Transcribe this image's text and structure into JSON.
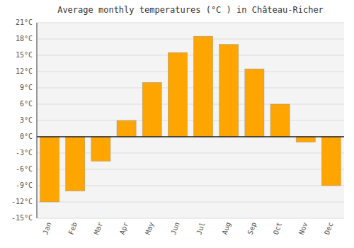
{
  "chart_data": {
    "type": "bar",
    "title": "Average monthly temperatures (°C ) in Château-Richer",
    "categories": [
      "Jan",
      "Feb",
      "Mar",
      "Apr",
      "May",
      "Jun",
      "Jul",
      "Aug",
      "Sep",
      "Oct",
      "Nov",
      "Dec"
    ],
    "values": [
      -12,
      -10,
      -4.5,
      3,
      10,
      15.5,
      18.5,
      17,
      12.5,
      6,
      -1,
      -9
    ],
    "color": "#FFA500",
    "ylim": [
      -15,
      21
    ],
    "yticks": [
      {
        "value": -15,
        "label": "-15°C"
      },
      {
        "value": -12,
        "label": "-12°C"
      },
      {
        "value": -9,
        "label": "-9°C"
      },
      {
        "value": -6,
        "label": "-6°C"
      },
      {
        "value": -3,
        "label": "-3°C"
      },
      {
        "value": 0,
        "label": "0°C"
      },
      {
        "value": 3,
        "label": "3°C"
      },
      {
        "value": 6,
        "label": "6°C"
      },
      {
        "value": 9,
        "label": "9°C"
      },
      {
        "value": 12,
        "label": "12°C"
      },
      {
        "value": 15,
        "label": "15°C"
      },
      {
        "value": 18,
        "label": "18°C"
      },
      {
        "value": 21,
        "label": "21°C"
      }
    ],
    "grid": true
  }
}
